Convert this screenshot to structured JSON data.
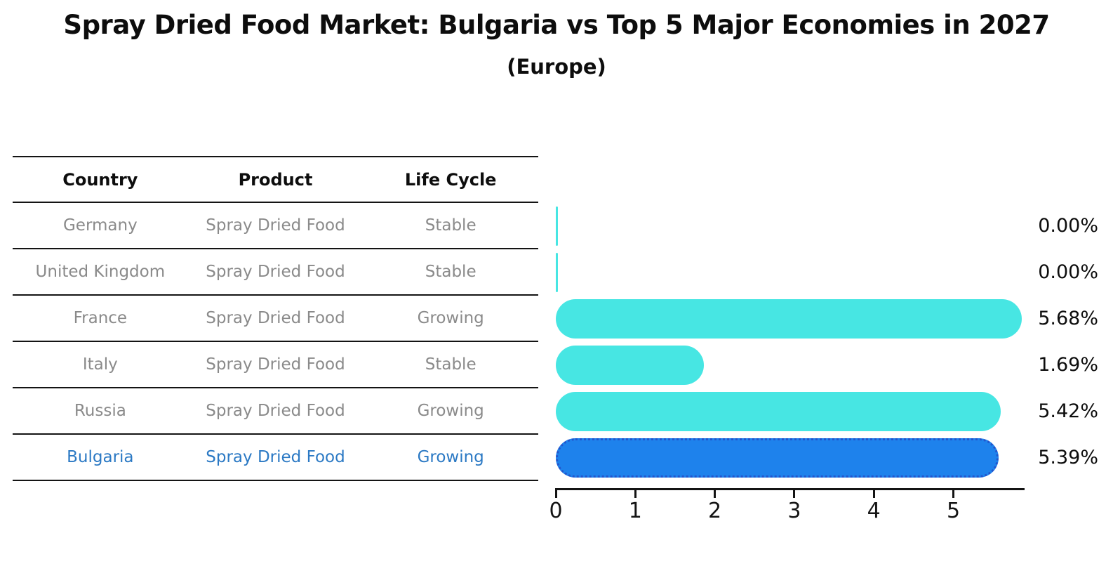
{
  "title": "Spray Dried Food Market: Bulgaria vs Top 5 Major Economies in 2027",
  "subtitle": "(Europe)",
  "table": {
    "headers": [
      "Country",
      "Product",
      "Life Cycle"
    ],
    "rows": [
      {
        "country": "Germany",
        "product": "Spray Dried Food",
        "life_cycle": "Stable",
        "highlight": false
      },
      {
        "country": "United Kingdom",
        "product": "Spray Dried Food",
        "life_cycle": "Stable",
        "highlight": false
      },
      {
        "country": "France",
        "product": "Spray Dried Food",
        "life_cycle": "Growing",
        "highlight": false
      },
      {
        "country": "Italy",
        "product": "Spray Dried Food",
        "life_cycle": "Stable",
        "highlight": false
      },
      {
        "country": "Russia",
        "product": "Spray Dried Food",
        "life_cycle": "Growing",
        "highlight": false
      },
      {
        "country": "Bulgaria",
        "product": "Spray Dried Food",
        "life_cycle": "Growing",
        "highlight": true
      }
    ]
  },
  "chart_data": {
    "type": "bar",
    "orientation": "horizontal",
    "title": "Spray Dried Food Market: Bulgaria vs Top 5 Major Economies in 2027",
    "subtitle": "(Europe)",
    "categories": [
      "Germany",
      "United Kingdom",
      "France",
      "Italy",
      "Russia",
      "Bulgaria"
    ],
    "values": [
      0.0,
      0.0,
      5.68,
      1.69,
      5.42,
      5.39
    ],
    "value_labels": [
      "0.00%",
      "0.00%",
      "5.68%",
      "1.69%",
      "5.42%",
      "5.39%"
    ],
    "x_ticks": [
      0,
      1,
      2,
      3,
      4,
      5
    ],
    "xlim": [
      0,
      5.9
    ],
    "grid": false,
    "legend_position": "none",
    "bar_color": "#47E6E3",
    "highlight_index": 5,
    "highlight_color": "#1E82EC",
    "highlight_border": "#2355CC"
  },
  "colors": {
    "bar_cyan": "#47E6E3",
    "bar_blue": "#1E82EC",
    "bar_blue_border": "#2355CC",
    "highlight_text": "#2B79C4",
    "table_text_gray": "#8A8A8A",
    "line_black": "#141414"
  }
}
